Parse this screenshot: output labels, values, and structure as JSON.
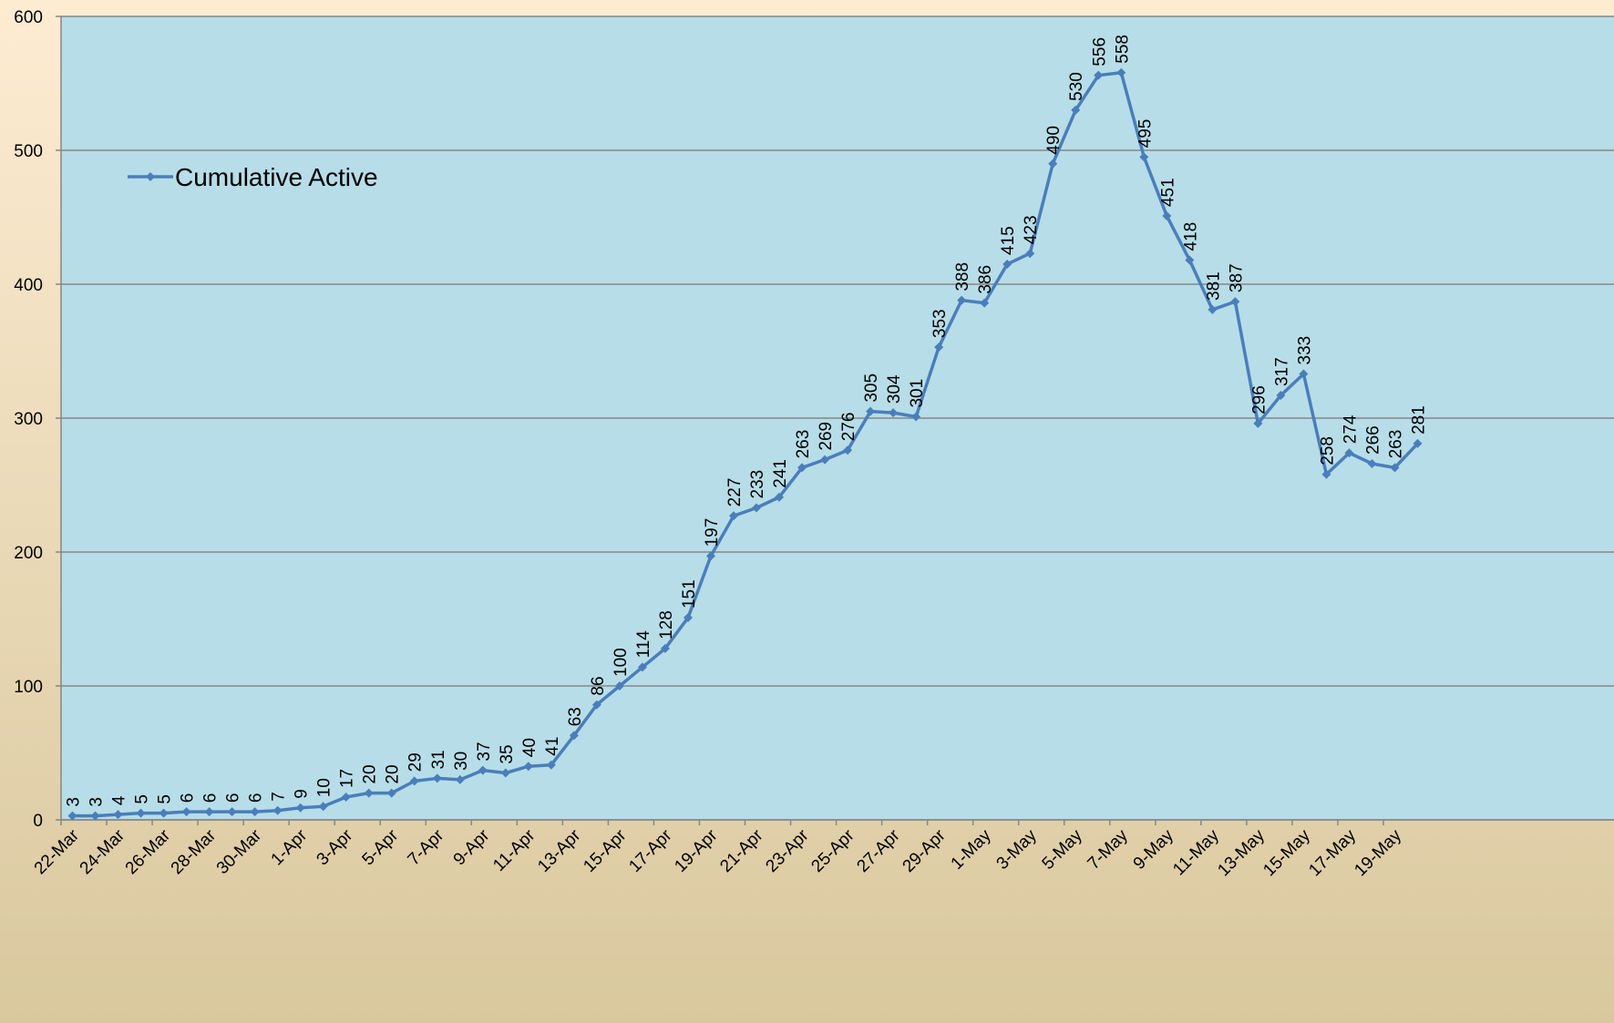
{
  "chart_data": {
    "type": "line",
    "categories": [
      "22-Mar",
      null,
      "24-Mar",
      null,
      "26-Mar",
      null,
      "28-Mar",
      null,
      "30-Mar",
      null,
      "1-Apr",
      null,
      "3-Apr",
      null,
      "5-Apr",
      null,
      "7-Apr",
      null,
      "9-Apr",
      null,
      "11-Apr",
      null,
      "13-Apr",
      null,
      "15-Apr",
      null,
      "17-Apr",
      null,
      "19-Apr",
      null,
      "21-Apr",
      null,
      "23-Apr",
      null,
      "25-Apr",
      null,
      "27-Apr",
      null,
      "29-Apr",
      null,
      "1-May",
      null,
      "3-May",
      null,
      "5-May",
      null,
      "7-May",
      null,
      "9-May",
      null,
      "11-May",
      null,
      "13-May",
      null,
      "15-May",
      null,
      "17-May",
      null,
      "19-May",
      null
    ],
    "series": [
      {
        "name": "Cumulative Active",
        "color": "#4a7ebb",
        "values": [
          3,
          3,
          4,
          5,
          5,
          6,
          6,
          6,
          6,
          7,
          9,
          10,
          17,
          20,
          20,
          29,
          31,
          30,
          37,
          35,
          40,
          41,
          63,
          86,
          100,
          114,
          128,
          151,
          197,
          227,
          233,
          241,
          263,
          269,
          276,
          305,
          304,
          301,
          353,
          388,
          386,
          415,
          423,
          490,
          530,
          556,
          558,
          495,
          451,
          418,
          381,
          387,
          296,
          317,
          333,
          258,
          274,
          266,
          263,
          281
        ]
      }
    ],
    "ylim": [
      0,
      600
    ],
    "yticks": [
      0,
      100,
      200,
      300,
      400,
      500,
      600
    ],
    "grid": true,
    "legend": "upper left"
  }
}
